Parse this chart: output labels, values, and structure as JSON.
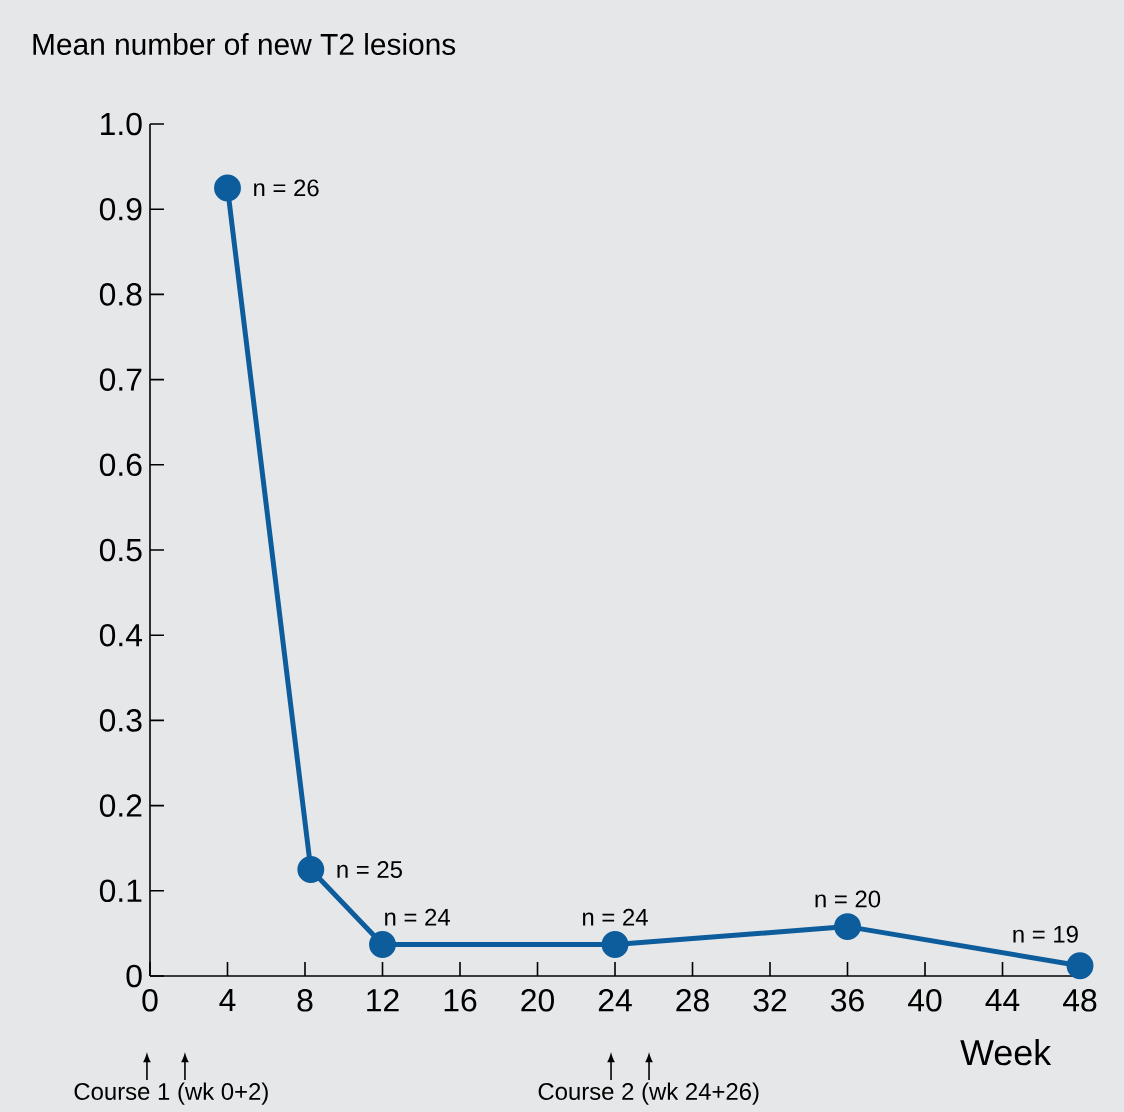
{
  "chart_data": {
    "type": "line",
    "title": "Mean number of new T2 lesions",
    "xlabel": "Week",
    "x": [
      4,
      8.3,
      12,
      24,
      36,
      48
    ],
    "values": [
      0.925,
      0.125,
      0.037,
      0.037,
      0.058,
      0.012
    ],
    "color": "#0d5c9c",
    "marker": "circle",
    "line_style": "solid",
    "xlim": [
      0,
      48
    ],
    "xticks": [
      0,
      4,
      8,
      12,
      16,
      20,
      24,
      28,
      32,
      36,
      40,
      44,
      48
    ],
    "ylim": [
      0,
      1.0
    ],
    "yticks": [
      {
        "value": 0,
        "label": "0"
      },
      {
        "value": 0.1,
        "label": "0.1"
      },
      {
        "value": 0.2,
        "label": "0.2"
      },
      {
        "value": 0.3,
        "label": "0.3"
      },
      {
        "value": 0.4,
        "label": "0.4"
      },
      {
        "value": 0.5,
        "label": "0.5"
      },
      {
        "value": 0.6,
        "label": "0.6"
      },
      {
        "value": 0.7,
        "label": "0.7"
      },
      {
        "value": 0.8,
        "label": "0.8"
      },
      {
        "value": 0.9,
        "label": "0.9"
      },
      {
        "value": 1.0,
        "label": "1.0"
      }
    ],
    "annotations": [
      {
        "text": "n = 26",
        "x": 4,
        "y": 0.925
      },
      {
        "text": "n = 25",
        "x": 8.3,
        "y": 0.125
      },
      {
        "text": "n = 24",
        "x": 12,
        "y": 0.037
      },
      {
        "text": "n = 24",
        "x": 24,
        "y": 0.037
      },
      {
        "text": "n = 20",
        "x": 36,
        "y": 0.058
      },
      {
        "text": "n = 19",
        "x": 48,
        "y": 0.012
      },
      "Course 1 (wk 0+2)",
      "Course 2 (wk 24+26)"
    ]
  }
}
